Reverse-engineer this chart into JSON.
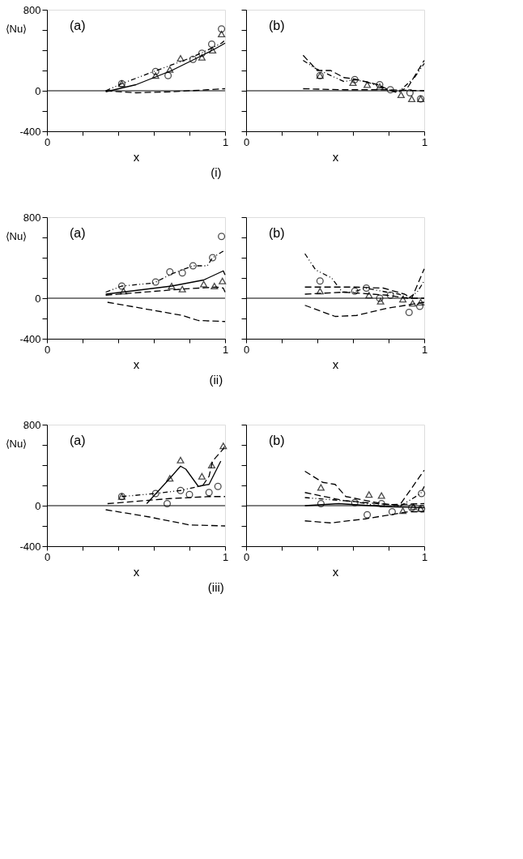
{
  "chart_data": [
    {
      "type": "line",
      "xlabel": "x",
      "ylabel": "⟨Nu⟩",
      "annotations": [
        "(a)",
        "(i)"
      ],
      "xlim": [
        0,
        1
      ],
      "ylim": [
        -400,
        800
      ],
      "xticks": [
        0,
        {
          "value": 0.2,
          "label": null
        },
        {
          "value": 0.4,
          "label": null
        },
        {
          "value": 0.6,
          "label": null
        },
        {
          "value": 0.8,
          "label": null
        },
        1
      ],
      "yticks": [
        -400,
        {
          "value": -200,
          "label": null
        },
        0,
        {
          "value": 200,
          "label": null
        },
        {
          "value": 400,
          "label": null
        },
        {
          "value": 600,
          "label": null
        },
        800
      ],
      "grid": false,
      "ref_lines": [
        {
          "axis": "y",
          "value": 0
        }
      ],
      "series": [
        {
          "type": "scatter",
          "marker": "circle",
          "color": "#000000",
          "x": [
            0.42,
            0.61,
            0.68,
            0.82,
            0.87,
            0.925,
            0.98
          ],
          "values": [
            70,
            190,
            150,
            310,
            370,
            460,
            610
          ]
        },
        {
          "type": "scatter",
          "marker": "triangle",
          "color": "#000000",
          "x": [
            0.42,
            0.61,
            0.69,
            0.75,
            0.87,
            0.93,
            0.98
          ],
          "values": [
            70,
            150,
            210,
            320,
            330,
            400,
            560
          ]
        },
        {
          "type": "line",
          "line_style": "dotted",
          "color": "#000000",
          "x": [
            0.33,
            0.42,
            0.6,
            0.8,
            0.9,
            0.98,
            1.0
          ],
          "values": [
            0,
            70,
            190,
            320,
            400,
            470,
            500
          ]
        },
        {
          "type": "line",
          "line_style": "solid",
          "color": "#000000",
          "x": [
            0.33,
            0.5,
            0.7,
            0.85,
            0.95,
            1.0
          ],
          "values": [
            -10,
            60,
            200,
            330,
            420,
            470
          ]
        },
        {
          "type": "line",
          "line_style": "dashed",
          "color": "#000000",
          "x": [
            0.33,
            0.5,
            0.7,
            0.9,
            1.0
          ],
          "values": [
            0,
            -20,
            -10,
            10,
            20
          ]
        }
      ]
    },
    {
      "type": "line",
      "xlabel": "x",
      "annotations": [
        "(b)"
      ],
      "xlim": [
        0,
        1
      ],
      "ylim": [
        -400,
        800
      ],
      "tick_labels": "x",
      "xticks": [
        0,
        {
          "value": 0.2,
          "label": null
        },
        {
          "value": 0.4,
          "label": null
        },
        {
          "value": 0.6,
          "label": null
        },
        {
          "value": 0.8,
          "label": null
        },
        1
      ],
      "yticks": [
        {
          "value": -400,
          "label": null
        },
        {
          "value": -200,
          "label": null
        },
        {
          "value": 0,
          "label": null
        },
        {
          "value": 200,
          "label": null
        },
        {
          "value": 400,
          "label": null
        },
        {
          "value": 600,
          "label": null
        },
        {
          "value": 800,
          "label": null
        }
      ],
      "grid": false,
      "ref_lines": [
        {
          "axis": "y",
          "value": 0
        }
      ],
      "series": [
        {
          "type": "scatter",
          "marker": "circle",
          "color": "#000000",
          "x": [
            0.415,
            0.61,
            0.75,
            0.81,
            0.92,
            0.98
          ],
          "values": [
            150,
            110,
            60,
            10,
            -20,
            -80
          ]
        },
        {
          "type": "scatter",
          "marker": "triangle",
          "color": "#000000",
          "x": [
            0.415,
            0.6,
            0.68,
            0.75,
            0.87,
            0.93,
            0.98
          ],
          "values": [
            150,
            80,
            60,
            40,
            -40,
            -80,
            -80
          ]
        },
        {
          "type": "line",
          "line_style": "dashed",
          "color": "#000000",
          "x": [
            0.32,
            0.4,
            0.475,
            0.55,
            0.6,
            0.67,
            0.74,
            0.8,
            0.85,
            0.91,
            1.0
          ],
          "values": [
            350,
            200,
            200,
            130,
            120,
            90,
            60,
            10,
            -20,
            40,
            300
          ]
        },
        {
          "type": "line",
          "line_style": "dotted",
          "color": "#000000",
          "x": [
            0.32,
            0.39,
            0.55,
            0.61,
            0.69,
            0.78,
            0.84,
            0.87,
            0.945,
            1.0
          ],
          "values": [
            300,
            220,
            90,
            110,
            80,
            20,
            -10,
            10,
            130,
            270
          ]
        },
        {
          "type": "line",
          "line_style": "dashed",
          "color": "#000000",
          "x": [
            0.32,
            0.55,
            0.79,
            1.0
          ],
          "values": [
            20,
            10,
            10,
            0
          ]
        }
      ]
    },
    {
      "type": "line",
      "xlabel": "x",
      "ylabel": "⟨Nu⟩",
      "annotations": [
        "(a)",
        "(ii)"
      ],
      "xlim": [
        0,
        1
      ],
      "ylim": [
        -400,
        800
      ],
      "xticks": [
        0,
        {
          "value": 0.2,
          "label": null
        },
        {
          "value": 0.4,
          "label": null
        },
        {
          "value": 0.6,
          "label": null
        },
        {
          "value": 0.8,
          "label": null
        },
        1
      ],
      "yticks": [
        -400,
        {
          "value": -200,
          "label": null
        },
        0,
        {
          "value": 200,
          "label": null
        },
        {
          "value": 400,
          "label": null
        },
        {
          "value": 600,
          "label": null
        },
        800
      ],
      "grid": false,
      "ref_lines": [
        {
          "axis": "y",
          "value": 0
        }
      ],
      "series": [
        {
          "type": "scatter",
          "marker": "circle",
          "color": "#000000",
          "x": [
            0.42,
            0.61,
            0.69,
            0.76,
            0.82,
            0.93,
            0.98
          ],
          "values": [
            120,
            160,
            260,
            250,
            320,
            400,
            610
          ]
        },
        {
          "type": "scatter",
          "marker": "triangle",
          "color": "#000000",
          "x": [
            0.43,
            0.7,
            0.76,
            0.88,
            0.94,
            0.985
          ],
          "values": [
            70,
            120,
            90,
            140,
            120,
            170
          ]
        },
        {
          "type": "line",
          "line_style": "dotted",
          "color": "#000000",
          "x": [
            0.33,
            0.42,
            0.6,
            0.7,
            0.82,
            0.9,
            0.93,
            0.985,
            1.0
          ],
          "values": [
            60,
            120,
            150,
            240,
            320,
            320,
            400,
            460,
            470
          ]
        },
        {
          "type": "line",
          "line_style": "solid",
          "color": "#000000",
          "x": [
            0.33,
            0.7,
            0.88,
            0.99,
            1.0
          ],
          "values": [
            40,
            120,
            180,
            270,
            230
          ]
        },
        {
          "type": "line",
          "line_style": "dashed",
          "color": "#000000",
          "x": [
            0.33,
            0.76,
            0.95,
            0.99,
            1.0
          ],
          "values": [
            30,
            90,
            110,
            100,
            60
          ]
        },
        {
          "type": "line",
          "line_style": "dashed",
          "color": "#000000",
          "x": [
            0.34,
            0.6,
            0.76,
            0.85,
            1.0
          ],
          "values": [
            -40,
            -120,
            -170,
            -220,
            -230
          ]
        }
      ]
    },
    {
      "type": "line",
      "xlabel": "x",
      "annotations": [
        "(b)"
      ],
      "xlim": [
        0,
        1
      ],
      "ylim": [
        -400,
        800
      ],
      "tick_labels": "x",
      "xticks": [
        0,
        {
          "value": 0.2,
          "label": null
        },
        {
          "value": 0.4,
          "label": null
        },
        {
          "value": 0.6,
          "label": null
        },
        {
          "value": 0.8,
          "label": null
        },
        1
      ],
      "yticks": [
        {
          "value": -400,
          "label": null
        },
        {
          "value": -200,
          "label": null
        },
        {
          "value": 0,
          "label": null
        },
        {
          "value": 200,
          "label": null
        },
        {
          "value": 400,
          "label": null
        },
        {
          "value": 600,
          "label": null
        },
        {
          "value": 800,
          "label": null
        }
      ],
      "grid": false,
      "ref_lines": [
        {
          "axis": "y",
          "value": 0
        }
      ],
      "series": [
        {
          "type": "scatter",
          "marker": "circle",
          "color": "#000000",
          "x": [
            0.415,
            0.61,
            0.675,
            0.75,
            0.81,
            0.915,
            0.975
          ],
          "values": [
            170,
            70,
            100,
            0,
            30,
            -140,
            -80
          ]
        },
        {
          "type": "scatter",
          "marker": "triangle",
          "color": "#000000",
          "x": [
            0.415,
            0.69,
            0.755,
            0.88,
            0.935,
            0.98
          ],
          "values": [
            70,
            30,
            -30,
            -10,
            -50,
            -40
          ]
        },
        {
          "type": "line",
          "line_style": "dotted",
          "color": "#000000",
          "x": [
            0.33,
            0.39,
            0.48,
            0.54,
            0.6,
            0.67,
            0.79,
            0.86,
            0.91,
            0.96,
            1.0
          ],
          "values": [
            440,
            280,
            200,
            60,
            60,
            100,
            60,
            40,
            0,
            60,
            170
          ]
        },
        {
          "type": "line",
          "line_style": "dashed",
          "color": "#000000",
          "x": [
            0.33,
            0.61,
            0.77,
            0.89,
            0.93,
            1.0
          ],
          "values": [
            110,
            110,
            100,
            40,
            0,
            290
          ]
        },
        {
          "type": "line",
          "line_style": "dashed",
          "color": "#000000",
          "x": [
            0.33,
            0.55,
            0.79,
            0.91,
            1.0
          ],
          "values": [
            40,
            60,
            30,
            0,
            0
          ]
        },
        {
          "type": "line",
          "line_style": "dashed",
          "color": "#000000",
          "x": [
            0.33,
            0.5,
            0.62,
            0.79,
            1.0
          ],
          "values": [
            -70,
            -180,
            -170,
            -100,
            -40
          ]
        }
      ]
    },
    {
      "type": "line",
      "xlabel": "x",
      "ylabel": "⟨Nu⟩",
      "annotations": [
        "(a)",
        "(iii)"
      ],
      "xlim": [
        0,
        1
      ],
      "ylim": [
        -400,
        800
      ],
      "xticks": [
        0,
        {
          "value": 0.2,
          "label": null
        },
        {
          "value": 0.4,
          "label": null
        },
        {
          "value": 0.6,
          "label": null
        },
        {
          "value": 0.8,
          "label": null
        },
        1
      ],
      "yticks": [
        -400,
        {
          "value": -200,
          "label": null
        },
        0,
        {
          "value": 200,
          "label": null
        },
        {
          "value": 400,
          "label": null
        },
        {
          "value": 600,
          "label": null
        },
        800
      ],
      "grid": false,
      "ref_lines": [
        {
          "axis": "y",
          "value": 0
        }
      ],
      "series": [
        {
          "type": "scatter",
          "marker": "circle",
          "color": "#000000",
          "x": [
            0.42,
            0.61,
            0.675,
            0.75,
            0.8,
            0.91,
            0.96
          ],
          "values": [
            90,
            120,
            20,
            150,
            110,
            130,
            190
          ]
        },
        {
          "type": "scatter",
          "marker": "triangle",
          "color": "#000000",
          "x": [
            0.42,
            0.69,
            0.75,
            0.87,
            0.925,
            0.99
          ],
          "values": [
            90,
            270,
            450,
            290,
            400,
            590
          ]
        },
        {
          "type": "line",
          "line_style": "solid",
          "color": "#000000",
          "x": [
            0.56,
            0.69,
            0.75,
            0.78,
            0.85,
            0.875,
            0.91,
            0.976
          ],
          "values": [
            20,
            270,
            390,
            360,
            190,
            200,
            210,
            440
          ]
        },
        {
          "type": "line",
          "line_style": "dashed",
          "color": "#000000",
          "x": [
            0.875,
            0.91,
            0.93,
            0.99,
            1.0
          ],
          "values": [
            200,
            290,
            440,
            560,
            600
          ]
        },
        {
          "type": "line",
          "line_style": "dotted",
          "color": "#000000",
          "x": [
            0.42,
            0.61,
            0.75,
            0.875
          ],
          "values": [
            90,
            120,
            150,
            200
          ]
        },
        {
          "type": "line",
          "line_style": "dashed",
          "color": "#000000",
          "x": [
            0.34,
            0.69,
            0.91,
            1.0
          ],
          "values": [
            20,
            70,
            90,
            90
          ]
        },
        {
          "type": "line",
          "line_style": "dashed",
          "color": "#000000",
          "x": [
            0.33,
            0.57,
            0.8,
            1.0
          ],
          "values": [
            -40,
            -110,
            -190,
            -200
          ]
        }
      ]
    },
    {
      "type": "line",
      "xlabel": "x",
      "annotations": [
        "(b)"
      ],
      "xlim": [
        0,
        1
      ],
      "ylim": [
        -400,
        800
      ],
      "tick_labels": "x",
      "xticks": [
        0,
        {
          "value": 0.2,
          "label": null
        },
        {
          "value": 0.4,
          "label": null
        },
        {
          "value": 0.6,
          "label": null
        },
        {
          "value": 0.8,
          "label": null
        },
        1
      ],
      "yticks": [
        {
          "value": -400,
          "label": null
        },
        {
          "value": -200,
          "label": null
        },
        {
          "value": 0,
          "label": null
        },
        {
          "value": 200,
          "label": null
        },
        {
          "value": 400,
          "label": null
        },
        {
          "value": 600,
          "label": null
        },
        {
          "value": 800,
          "label": null
        }
      ],
      "grid": false,
      "ref_lines": [
        {
          "axis": "y",
          "value": 0
        }
      ],
      "series": [
        {
          "type": "scatter",
          "marker": "circle",
          "color": "#000000",
          "x": [
            0.42,
            0.61,
            0.68,
            0.76,
            0.82,
            0.93,
            0.985,
            0.985
          ],
          "values": [
            20,
            30,
            -90,
            20,
            -60,
            -20,
            120,
            -30
          ]
        },
        {
          "type": "scatter",
          "marker": "triangle",
          "color": "#000000",
          "x": [
            0.42,
            0.69,
            0.76,
            0.88,
            0.94,
            0.98
          ],
          "values": [
            180,
            110,
            100,
            -50,
            -10,
            -30
          ]
        },
        {
          "type": "line",
          "line_style": "dashed",
          "color": "#000000",
          "x": [
            0.33,
            0.43,
            0.5,
            0.56,
            0.765,
            0.86,
            1.0
          ],
          "values": [
            340,
            230,
            210,
            90,
            20,
            0,
            350
          ]
        },
        {
          "type": "line",
          "line_style": "dotted",
          "color": "#000000",
          "x": [
            0.33,
            0.61,
            0.765,
            0.86,
            0.98,
            1.0
          ],
          "values": [
            80,
            40,
            -10,
            -10,
            120,
            190
          ]
        },
        {
          "type": "line",
          "line_style": "solid",
          "color": "#000000",
          "x": [
            0.33,
            0.52,
            0.79,
            1.0
          ],
          "values": [
            0,
            20,
            -10,
            -20
          ]
        },
        {
          "type": "line",
          "line_style": "dashed",
          "color": "#000000",
          "x": [
            0.33,
            0.55,
            0.8,
            1.0
          ],
          "values": [
            130,
            50,
            10,
            20
          ]
        },
        {
          "type": "line",
          "line_style": "dashed",
          "color": "#000000",
          "x": [
            0.33,
            0.475,
            0.67,
            0.91,
            1.0
          ],
          "values": [
            -150,
            -170,
            -130,
            -60,
            -60
          ]
        }
      ]
    }
  ]
}
